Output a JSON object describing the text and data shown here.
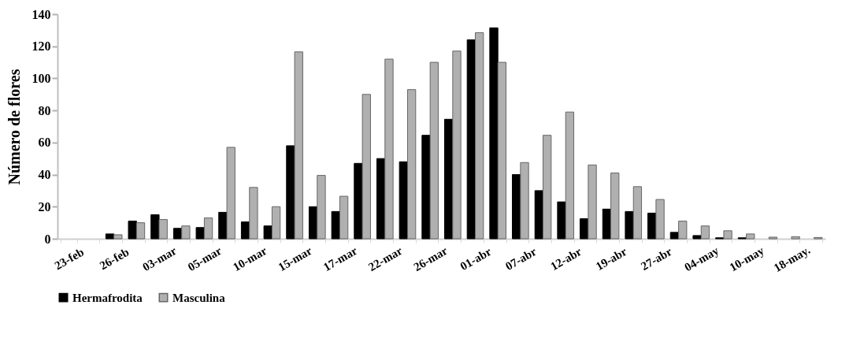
{
  "chart_data": {
    "type": "bar",
    "ylabel": "Número de flores",
    "categories": [
      "23-feb",
      null,
      "26-feb",
      null,
      "03-mar",
      null,
      "05-mar",
      null,
      "10-mar",
      null,
      "15-mar",
      null,
      "17-mar",
      null,
      "22-mar",
      null,
      "26-mar",
      null,
      "01-abr",
      null,
      "07-abr",
      null,
      "12-abr",
      null,
      "19-abr",
      null,
      "27-abr",
      null,
      "04-may",
      null,
      "10-may",
      null,
      "18-may.",
      null
    ],
    "series": [
      {
        "name": "Hermafrodita",
        "color": "#000000",
        "values": [
          null,
          null,
          3,
          11,
          15,
          6.5,
          7,
          16.5,
          10.5,
          8,
          58,
          20,
          17,
          47,
          50,
          48,
          64.5,
          74.5,
          124,
          131.5,
          40,
          30,
          23,
          12.5,
          18.5,
          17,
          16,
          4,
          2,
          0.6,
          0.6,
          null,
          null,
          null
        ]
      },
      {
        "name": "Masculina",
        "color": "#b0b0b0",
        "values": [
          null,
          null,
          2.5,
          10,
          12,
          8,
          13,
          57,
          32,
          20,
          116.5,
          39.5,
          26.5,
          90,
          112,
          93,
          110,
          117,
          128.5,
          110,
          47.5,
          64.5,
          79,
          46,
          41,
          32.5,
          24.5,
          11,
          8,
          5,
          3,
          1,
          1.3,
          0.8
        ]
      }
    ],
    "ylim": [
      0,
      140
    ],
    "yticks": [
      0,
      20,
      40,
      60,
      80,
      100,
      120,
      140
    ],
    "grid": false,
    "legend": "bottom"
  }
}
